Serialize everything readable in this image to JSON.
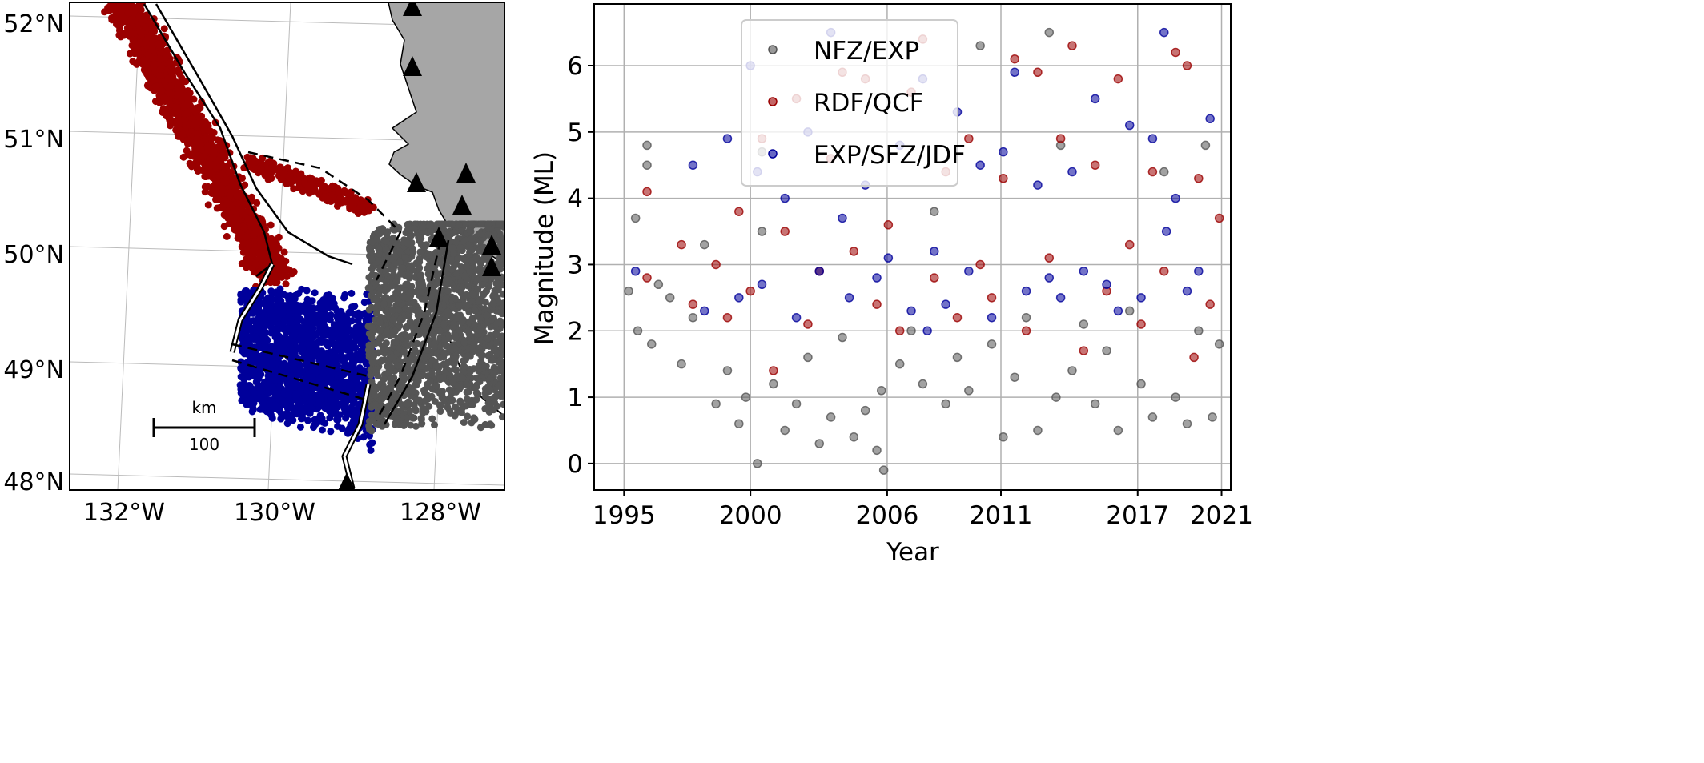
{
  "map": {
    "lat_labels": [
      "52°N",
      "51°N",
      "50°N",
      "49°N",
      "48°N"
    ],
    "lon_labels": [
      "132°W",
      "130°W",
      "128°W"
    ],
    "scale_bar": {
      "unit": "km",
      "value": "100"
    },
    "colors": {
      "land": "#a6a6a6",
      "ocean": "#ffffff",
      "rdf_qcf": "#9b0000",
      "exp_sfz_jdf": "#00009b",
      "nfz_exp": "#555555"
    },
    "icons": {
      "station": "triangle-icon"
    }
  },
  "chart_data": {
    "type": "scatter",
    "title": "",
    "xlabel": "Year",
    "ylabel": "Magnitude (ML)",
    "xlim": [
      1993.7,
      2021.4
    ],
    "ylim": [
      -0.4,
      6.93
    ],
    "grid": true,
    "legend_placement": "top-left",
    "x_ticks": [
      {
        "value": 1995,
        "label": "1995"
      },
      {
        "value": 2000.5,
        "label": "2000"
      },
      {
        "value": 2006.45,
        "label": "2006"
      },
      {
        "value": 2011.4,
        "label": "2011"
      },
      {
        "value": 2017.35,
        "label": "2017"
      },
      {
        "value": 2021,
        "label": "2021"
      }
    ],
    "y_ticks": [
      0,
      1,
      2,
      3,
      4,
      5,
      6
    ],
    "series": [
      {
        "name": "NFZ/EXP",
        "color": "#555555",
        "points": [
          [
            1995.2,
            2.6
          ],
          [
            1995.5,
            3.7
          ],
          [
            1995.6,
            2.0
          ],
          [
            1996,
            4.5
          ],
          [
            1996,
            4.8
          ],
          [
            1996.2,
            1.8
          ],
          [
            1996.5,
            2.7
          ],
          [
            1997,
            2.5
          ],
          [
            1997.5,
            1.5
          ],
          [
            1998,
            2.2
          ],
          [
            1998.5,
            3.3
          ],
          [
            1999,
            0.9
          ],
          [
            1999.5,
            1.4
          ],
          [
            2000,
            0.6
          ],
          [
            2000.3,
            1.0
          ],
          [
            2000.8,
            0.0
          ],
          [
            2001,
            4.7
          ],
          [
            2001,
            3.5
          ],
          [
            2001.5,
            1.2
          ],
          [
            2002,
            0.5
          ],
          [
            2002.5,
            0.9
          ],
          [
            2003,
            1.6
          ],
          [
            2003.5,
            0.3
          ],
          [
            2004,
            0.7
          ],
          [
            2004.5,
            1.9
          ],
          [
            2005,
            0.4
          ],
          [
            2005.5,
            0.8
          ],
          [
            2006,
            0.2
          ],
          [
            2006.3,
            -0.1
          ],
          [
            2006.2,
            1.1
          ],
          [
            2007,
            1.5
          ],
          [
            2007.5,
            2.0
          ],
          [
            2008,
            1.2
          ],
          [
            2008.5,
            3.8
          ],
          [
            2009,
            0.9
          ],
          [
            2009.5,
            1.6
          ],
          [
            2010,
            1.1
          ],
          [
            2010.5,
            6.3
          ],
          [
            2011,
            1.8
          ],
          [
            2011.5,
            0.4
          ],
          [
            2012,
            1.3
          ],
          [
            2012.5,
            2.2
          ],
          [
            2013,
            0.5
          ],
          [
            2013.5,
            6.5
          ],
          [
            2013.8,
            1.0
          ],
          [
            2014,
            4.8
          ],
          [
            2014.5,
            1.4
          ],
          [
            2015,
            2.1
          ],
          [
            2015.5,
            0.9
          ],
          [
            2016,
            1.7
          ],
          [
            2016.5,
            0.5
          ],
          [
            2017,
            2.3
          ],
          [
            2017.5,
            1.2
          ],
          [
            2018,
            0.7
          ],
          [
            2018.5,
            4.4
          ],
          [
            2019,
            1.0
          ],
          [
            2019.5,
            0.6
          ],
          [
            2020,
            2.0
          ],
          [
            2020.3,
            4.8
          ],
          [
            2020.6,
            0.7
          ],
          [
            2020.9,
            1.8
          ]
        ]
      },
      {
        "name": "RDF/QCF",
        "color": "#9b0000",
        "points": [
          [
            1996,
            4.1
          ],
          [
            1996,
            2.8
          ],
          [
            1997.5,
            3.3
          ],
          [
            1998,
            2.4
          ],
          [
            1999,
            3.0
          ],
          [
            1999.5,
            2.2
          ],
          [
            2000,
            3.8
          ],
          [
            2000.5,
            2.6
          ],
          [
            2001,
            4.9
          ],
          [
            2001.5,
            1.4
          ],
          [
            2002,
            3.5
          ],
          [
            2002.5,
            5.5
          ],
          [
            2003,
            2.1
          ],
          [
            2003.5,
            2.9
          ],
          [
            2004,
            4.6
          ],
          [
            2004.5,
            5.9
          ],
          [
            2005,
            3.2
          ],
          [
            2005.5,
            5.8
          ],
          [
            2006,
            2.4
          ],
          [
            2006.5,
            3.6
          ],
          [
            2007,
            2.0
          ],
          [
            2007.5,
            5.6
          ],
          [
            2008,
            6.4
          ],
          [
            2008.5,
            2.8
          ],
          [
            2009,
            4.4
          ],
          [
            2009.5,
            2.2
          ],
          [
            2010,
            4.9
          ],
          [
            2010.5,
            3.0
          ],
          [
            2011,
            2.5
          ],
          [
            2011.5,
            4.3
          ],
          [
            2012,
            6.1
          ],
          [
            2012.5,
            2.0
          ],
          [
            2013,
            5.9
          ],
          [
            2013.5,
            3.1
          ],
          [
            2014,
            4.9
          ],
          [
            2014.5,
            6.3
          ],
          [
            2015,
            1.7
          ],
          [
            2015.5,
            4.5
          ],
          [
            2016,
            2.6
          ],
          [
            2016.5,
            5.8
          ],
          [
            2017,
            3.3
          ],
          [
            2017.5,
            2.1
          ],
          [
            2018,
            4.4
          ],
          [
            2018.5,
            2.9
          ],
          [
            2019,
            6.2
          ],
          [
            2019.5,
            6.0
          ],
          [
            2019.8,
            1.6
          ],
          [
            2020,
            4.3
          ],
          [
            2020.5,
            2.4
          ],
          [
            2020.9,
            3.7
          ]
        ]
      },
      {
        "name": "EXP/SFZ/JDF",
        "color": "#00009b",
        "points": [
          [
            1995.5,
            2.9
          ],
          [
            1998,
            4.5
          ],
          [
            1998.5,
            2.3
          ],
          [
            1999.5,
            4.9
          ],
          [
            2000,
            2.5
          ],
          [
            2000.5,
            6.0
          ],
          [
            2000.8,
            4.4
          ],
          [
            2001,
            2.7
          ],
          [
            2002,
            4.0
          ],
          [
            2002.5,
            2.2
          ],
          [
            2003,
            5.0
          ],
          [
            2003.5,
            2.9
          ],
          [
            2004,
            6.5
          ],
          [
            2004.5,
            3.7
          ],
          [
            2004.8,
            2.5
          ],
          [
            2005.5,
            4.2
          ],
          [
            2006,
            2.8
          ],
          [
            2006.5,
            3.1
          ],
          [
            2007,
            4.8
          ],
          [
            2007.5,
            2.3
          ],
          [
            2008,
            5.8
          ],
          [
            2008.2,
            2.0
          ],
          [
            2008.5,
            3.2
          ],
          [
            2009,
            2.4
          ],
          [
            2009.5,
            5.3
          ],
          [
            2010,
            2.9
          ],
          [
            2010.5,
            4.5
          ],
          [
            2011,
            2.2
          ],
          [
            2011.5,
            4.7
          ],
          [
            2012,
            5.9
          ],
          [
            2012.5,
            2.6
          ],
          [
            2013,
            4.2
          ],
          [
            2013.5,
            2.8
          ],
          [
            2014,
            2.5
          ],
          [
            2014.5,
            4.4
          ],
          [
            2015,
            2.9
          ],
          [
            2015.5,
            5.5
          ],
          [
            2016,
            2.7
          ],
          [
            2016.5,
            2.3
          ],
          [
            2017,
            5.1
          ],
          [
            2017.5,
            2.5
          ],
          [
            2018,
            4.9
          ],
          [
            2018.5,
            6.5
          ],
          [
            2018.6,
            3.5
          ],
          [
            2019,
            4.0
          ],
          [
            2019.5,
            2.6
          ],
          [
            2020,
            2.9
          ],
          [
            2020.5,
            5.2
          ]
        ]
      }
    ]
  }
}
